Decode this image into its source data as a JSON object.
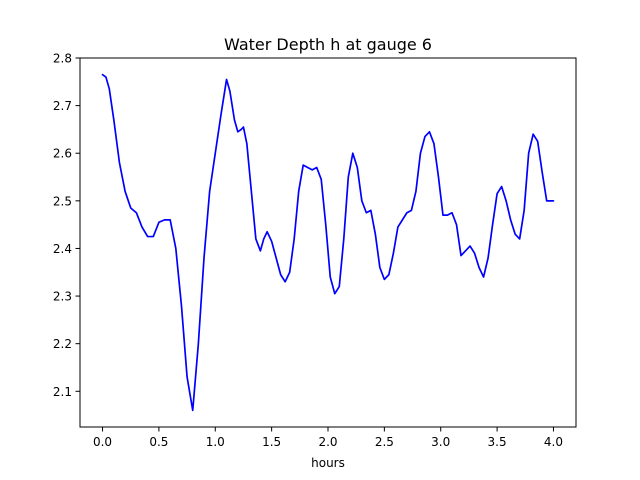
{
  "chart_data": {
    "type": "line",
    "title": "Water Depth h at gauge 6",
    "xlabel": "hours",
    "ylabel": "",
    "xlim": [
      -0.2,
      4.2
    ],
    "ylim": [
      2.025,
      2.8
    ],
    "xticks": [
      0.0,
      0.5,
      1.0,
      1.5,
      2.0,
      2.5,
      3.0,
      3.5,
      4.0
    ],
    "xtick_labels": [
      "0.0",
      "0.5",
      "1.0",
      "1.5",
      "2.0",
      "2.5",
      "3.0",
      "3.5",
      "4.0"
    ],
    "yticks": [
      2.1,
      2.2,
      2.3,
      2.4,
      2.5,
      2.6,
      2.7,
      2.8
    ],
    "ytick_labels": [
      "2.1",
      "2.2",
      "2.3",
      "2.4",
      "2.5",
      "2.6",
      "2.7",
      "2.8"
    ],
    "grid": false,
    "series": [
      {
        "color": "#0000ff",
        "x": [
          0.0,
          0.03,
          0.06,
          0.1,
          0.15,
          0.2,
          0.25,
          0.3,
          0.35,
          0.4,
          0.45,
          0.5,
          0.55,
          0.6,
          0.65,
          0.7,
          0.75,
          0.8,
          0.85,
          0.9,
          0.95,
          1.0,
          1.05,
          1.1,
          1.13,
          1.17,
          1.2,
          1.23,
          1.25,
          1.28,
          1.32,
          1.36,
          1.4,
          1.43,
          1.46,
          1.5,
          1.54,
          1.58,
          1.62,
          1.66,
          1.7,
          1.74,
          1.78,
          1.82,
          1.86,
          1.9,
          1.94,
          1.98,
          2.02,
          2.06,
          2.1,
          2.14,
          2.18,
          2.22,
          2.26,
          2.3,
          2.34,
          2.38,
          2.42,
          2.46,
          2.5,
          2.54,
          2.58,
          2.62,
          2.66,
          2.7,
          2.74,
          2.78,
          2.82,
          2.86,
          2.9,
          2.94,
          2.98,
          3.02,
          3.06,
          3.1,
          3.14,
          3.18,
          3.22,
          3.26,
          3.3,
          3.34,
          3.38,
          3.42,
          3.46,
          3.5,
          3.54,
          3.58,
          3.62,
          3.66,
          3.7,
          3.74,
          3.78,
          3.82,
          3.86,
          3.9,
          3.94,
          3.97,
          4.0
        ],
        "y": [
          2.765,
          2.76,
          2.735,
          2.67,
          2.58,
          2.52,
          2.485,
          2.475,
          2.445,
          2.425,
          2.425,
          2.455,
          2.46,
          2.46,
          2.4,
          2.28,
          2.13,
          2.06,
          2.2,
          2.38,
          2.52,
          2.6,
          2.68,
          2.755,
          2.73,
          2.67,
          2.645,
          2.65,
          2.655,
          2.62,
          2.52,
          2.42,
          2.395,
          2.42,
          2.435,
          2.415,
          2.38,
          2.345,
          2.33,
          2.35,
          2.42,
          2.52,
          2.575,
          2.57,
          2.565,
          2.57,
          2.545,
          2.45,
          2.34,
          2.305,
          2.32,
          2.42,
          2.55,
          2.6,
          2.57,
          2.5,
          2.475,
          2.48,
          2.43,
          2.36,
          2.335,
          2.345,
          2.39,
          2.445,
          2.46,
          2.475,
          2.48,
          2.52,
          2.6,
          2.635,
          2.645,
          2.62,
          2.55,
          2.47,
          2.47,
          2.475,
          2.45,
          2.385,
          2.395,
          2.405,
          2.39,
          2.36,
          2.34,
          2.38,
          2.45,
          2.515,
          2.53,
          2.5,
          2.46,
          2.43,
          2.42,
          2.48,
          2.6,
          2.64,
          2.625,
          2.56,
          2.5,
          2.5,
          2.5
        ]
      }
    ]
  }
}
